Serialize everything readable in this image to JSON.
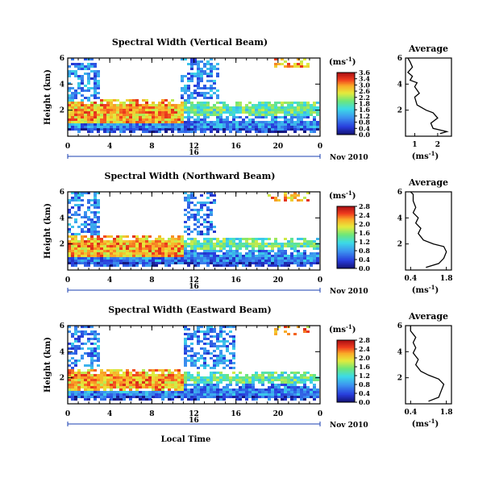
{
  "chart_data": [
    {
      "type": "heatmap",
      "title": "Spectral Width (Vertical Beam)",
      "ylabel": "Height (km)",
      "ylim": [
        0,
        6
      ],
      "yticks": [
        "2",
        "4",
        "6"
      ],
      "xlim": [
        0,
        24
      ],
      "xticks": [
        "0",
        "4",
        "8",
        "12",
        "16",
        "20",
        "0"
      ],
      "date_marker": "16",
      "date_label": "Nov 2010",
      "colorbar": {
        "unit": "(ms",
        "unit_exp": "-1",
        "unit_close": ")",
        "ticks": [
          "3.6",
          "3.4",
          "3.0",
          "2.6",
          "2.2",
          "1.8",
          "1.6",
          "1.2",
          "0.8",
          "0.4",
          "0.0"
        ]
      },
      "regions": [
        {
          "t": [
            0,
            24
          ],
          "h": [
            0.3,
            1.6
          ],
          "level": "low",
          "desc": "cyan/blue"
        },
        {
          "t": [
            0,
            11
          ],
          "h": [
            0.9,
            2.8
          ],
          "level": "high",
          "desc": "yellow/red"
        },
        {
          "t": [
            11,
            24
          ],
          "h": [
            1.6,
            2.7
          ],
          "level": "mid",
          "desc": "green/yellow"
        },
        {
          "t": [
            0,
            3
          ],
          "h": [
            2.7,
            6
          ],
          "level": "low",
          "desc": "blue"
        },
        {
          "t": [
            10.8,
            14.5
          ],
          "h": [
            2.7,
            6
          ],
          "level": "low",
          "desc": "blue"
        },
        {
          "t": [
            19.5,
            23
          ],
          "h": [
            5.2,
            6
          ],
          "level": "high",
          "desc": "orange"
        }
      ],
      "average": {
        "title": "Average",
        "xlabel": "(ms",
        "xlabel_exp": "-1",
        "xticks": [
          "1",
          "2"
        ],
        "xlim": [
          0.6,
          2.6
        ],
        "ylim": [
          0,
          6
        ],
        "yticks": [
          "2",
          "4",
          "6"
        ],
        "profile": [
          [
            2.1,
            0.2
          ],
          [
            2.4,
            0.35
          ],
          [
            1.8,
            0.6
          ],
          [
            1.7,
            1.0
          ],
          [
            2.0,
            1.4
          ],
          [
            1.8,
            1.8
          ],
          [
            1.5,
            2.0
          ],
          [
            1.1,
            2.4
          ],
          [
            1.0,
            3.0
          ],
          [
            1.2,
            3.3
          ],
          [
            1.0,
            3.8
          ],
          [
            1.1,
            4.1
          ],
          [
            0.8,
            4.3
          ],
          [
            0.9,
            4.6
          ],
          [
            0.7,
            4.9
          ],
          [
            0.9,
            5.3
          ],
          [
            0.8,
            5.7
          ],
          [
            0.7,
            6.0
          ]
        ]
      }
    },
    {
      "type": "heatmap",
      "title": "Spectral Width (Northward Beam)",
      "ylabel": "Height (km)",
      "ylim": [
        0,
        6
      ],
      "yticks": [
        "2",
        "4",
        "6"
      ],
      "xlim": [
        0,
        24
      ],
      "xticks": [
        "0",
        "4",
        "8",
        "12",
        "16",
        "20",
        "0"
      ],
      "date_marker": "16",
      "date_label": "Nov 2010",
      "colorbar": {
        "unit": "(ms",
        "unit_exp": "-1",
        "unit_close": ")",
        "ticks": [
          "2.8",
          "2.4",
          "2.0",
          "1.6",
          "1.2",
          "0.8",
          "0.4",
          "0.0"
        ]
      },
      "regions": [
        {
          "t": [
            0,
            24
          ],
          "h": [
            0.2,
            1.6
          ],
          "level": "low",
          "desc": "cyan/green"
        },
        {
          "t": [
            0,
            11
          ],
          "h": [
            0.9,
            2.6
          ],
          "level": "high",
          "desc": "yellow/red"
        },
        {
          "t": [
            11,
            24
          ],
          "h": [
            1.6,
            2.5
          ],
          "level": "mid",
          "desc": "green"
        },
        {
          "t": [
            0,
            3
          ],
          "h": [
            2.6,
            6
          ],
          "level": "low",
          "desc": "blue"
        },
        {
          "t": [
            11,
            14
          ],
          "h": [
            2.6,
            6
          ],
          "level": "low",
          "desc": "blue"
        },
        {
          "t": [
            19,
            23
          ],
          "h": [
            5.3,
            6
          ],
          "level": "high",
          "desc": "orange"
        }
      ],
      "average": {
        "title": "Average",
        "xlabel": "(ms",
        "xlabel_exp": "-1",
        "xticks": [
          "0.4",
          "1.8"
        ],
        "xlim": [
          0.2,
          2.0
        ],
        "ylim": [
          0,
          6
        ],
        "yticks": [
          "2",
          "4",
          "6"
        ],
        "profile": [
          [
            1.0,
            0.2
          ],
          [
            1.5,
            0.5
          ],
          [
            1.7,
            0.9
          ],
          [
            1.8,
            1.4
          ],
          [
            1.7,
            1.8
          ],
          [
            1.3,
            2.0
          ],
          [
            0.9,
            2.3
          ],
          [
            0.7,
            2.8
          ],
          [
            0.8,
            3.2
          ],
          [
            0.6,
            3.6
          ],
          [
            0.7,
            4.0
          ],
          [
            0.5,
            4.4
          ],
          [
            0.6,
            4.8
          ],
          [
            0.5,
            5.3
          ],
          [
            0.5,
            5.8
          ],
          [
            0.4,
            6.0
          ]
        ]
      }
    },
    {
      "type": "heatmap",
      "title": "Spectral Width (Eastward Beam)",
      "ylabel": "Height (km)",
      "ylim": [
        0,
        6
      ],
      "yticks": [
        "2",
        "4",
        "6"
      ],
      "xlim": [
        0,
        24
      ],
      "xticks": [
        "0",
        "4",
        "8",
        "12",
        "16",
        "20",
        "0"
      ],
      "date_marker": "16",
      "date_label": "Nov 2010",
      "xlabel": "Local Time",
      "colorbar": {
        "unit": "(ms",
        "unit_exp": "-1",
        "unit_close": ")",
        "ticks": [
          "2.8",
          "2.4",
          "2.0",
          "1.6",
          "1.2",
          "0.8",
          "0.4",
          "0.0"
        ]
      },
      "regions": [
        {
          "t": [
            0,
            24
          ],
          "h": [
            0.2,
            1.6
          ],
          "level": "low",
          "desc": "cyan/blue"
        },
        {
          "t": [
            0,
            11
          ],
          "h": [
            1.0,
            2.7
          ],
          "level": "high",
          "desc": "yellow/red"
        },
        {
          "t": [
            11,
            24
          ],
          "h": [
            1.6,
            2.5
          ],
          "level": "mid",
          "desc": "green"
        },
        {
          "t": [
            0,
            3
          ],
          "h": [
            2.7,
            6
          ],
          "level": "low",
          "desc": "blue"
        },
        {
          "t": [
            11,
            16
          ],
          "h": [
            2.7,
            6
          ],
          "level": "low",
          "desc": "blue"
        },
        {
          "t": [
            19.5,
            23
          ],
          "h": [
            5.3,
            6
          ],
          "level": "high",
          "desc": "orange"
        }
      ],
      "average": {
        "title": "Average",
        "xlabel": "(ms",
        "xlabel_exp": "-1",
        "xticks": [
          "0.4",
          "1.8"
        ],
        "xlim": [
          0.2,
          2.0
        ],
        "ylim": [
          0,
          6
        ],
        "yticks": [
          "2",
          "4",
          "6"
        ],
        "profile": [
          [
            1.1,
            0.2
          ],
          [
            1.5,
            0.5
          ],
          [
            1.6,
            1.0
          ],
          [
            1.7,
            1.5
          ],
          [
            1.5,
            1.9
          ],
          [
            1.1,
            2.2
          ],
          [
            0.8,
            2.5
          ],
          [
            0.6,
            3.0
          ],
          [
            0.7,
            3.4
          ],
          [
            0.5,
            3.9
          ],
          [
            0.6,
            4.3
          ],
          [
            0.5,
            4.7
          ],
          [
            0.6,
            5.1
          ],
          [
            0.4,
            5.6
          ],
          [
            0.4,
            6.0
          ]
        ]
      }
    }
  ]
}
